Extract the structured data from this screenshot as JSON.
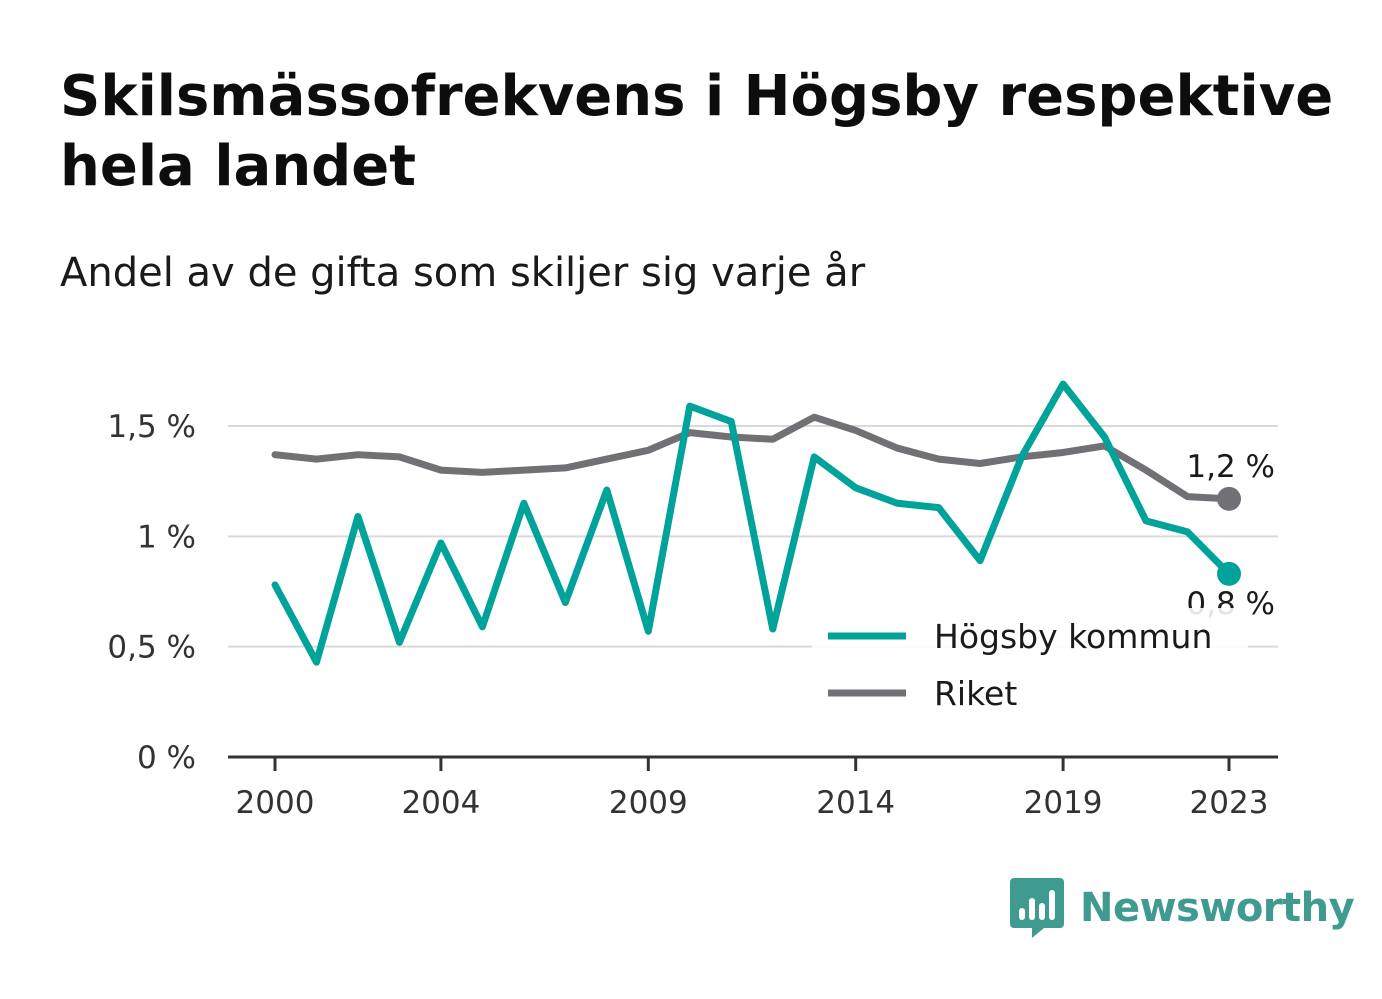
{
  "header": {
    "title": "Skilsmässofrekvens i Högsby respektive hela landet",
    "subtitle": "Andel av de gifta som skiljer sig varje år"
  },
  "brand": {
    "name": "Newsworthy",
    "icon": "bar-chart-speech-bubble-icon",
    "color": "#3f9b90"
  },
  "chart_data": {
    "type": "line",
    "title": "Skilsmässofrekvens i Högsby respektive hela landet",
    "subtitle": "Andel av de gifta som skiljer sig varje år",
    "xlabel": "",
    "ylabel": "",
    "x": [
      2000,
      2001,
      2002,
      2003,
      2004,
      2005,
      2006,
      2007,
      2008,
      2009,
      2010,
      2011,
      2012,
      2013,
      2014,
      2015,
      2016,
      2017,
      2018,
      2019,
      2020,
      2021,
      2022,
      2023
    ],
    "x_ticks": [
      2000,
      2004,
      2009,
      2014,
      2019,
      2023
    ],
    "y_ticks": [
      0,
      0.5,
      1,
      1.5
    ],
    "y_tick_labels": [
      "0 %",
      "0,5 %",
      "1 %",
      "1,5 %"
    ],
    "ylim": [
      0,
      1.75
    ],
    "grid": true,
    "legend_position": "bottom-right",
    "series": [
      {
        "name": "Högsby kommun",
        "color": "#00a39a",
        "end_label": "0,8 %",
        "values": [
          0.78,
          0.43,
          1.09,
          0.52,
          0.97,
          0.59,
          1.15,
          0.7,
          1.21,
          0.57,
          1.59,
          1.52,
          0.58,
          1.36,
          1.22,
          1.15,
          1.13,
          0.89,
          1.36,
          1.69,
          1.45,
          1.07,
          1.02,
          0.83
        ]
      },
      {
        "name": "Riket",
        "color": "#707075",
        "end_label": "1,2 %",
        "values": [
          1.37,
          1.35,
          1.37,
          1.36,
          1.3,
          1.29,
          1.3,
          1.31,
          1.35,
          1.39,
          1.47,
          1.45,
          1.44,
          1.54,
          1.48,
          1.4,
          1.35,
          1.33,
          1.36,
          1.38,
          1.41,
          1.3,
          1.18,
          1.17
        ]
      }
    ]
  }
}
